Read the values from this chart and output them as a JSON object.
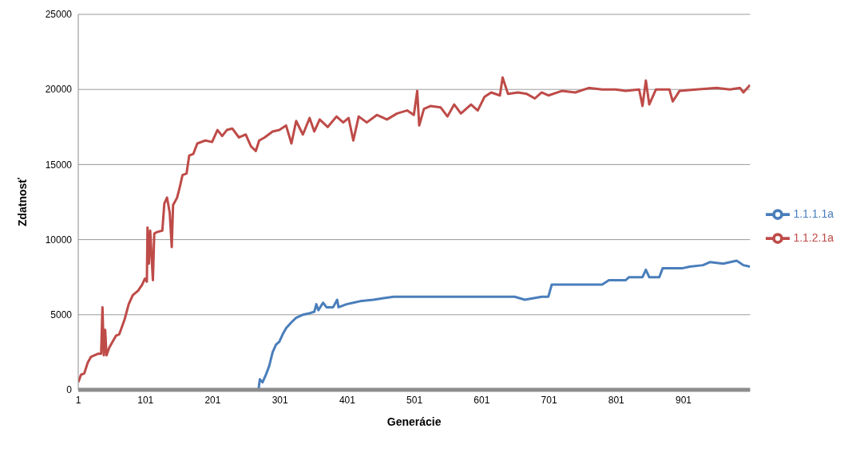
{
  "chart_data": {
    "type": "line",
    "xlabel": "Generácie",
    "ylabel": "Zdatnosť",
    "xlim": [
      1,
      1000
    ],
    "xticks": [
      1,
      101,
      201,
      301,
      401,
      501,
      601,
      701,
      801,
      901
    ],
    "ylim": [
      0,
      25000
    ],
    "yticks": [
      0,
      5000,
      10000,
      15000,
      20000,
      25000
    ],
    "grid": "y",
    "legend": "right",
    "marker": "none",
    "line_style": "solid",
    "series": [
      {
        "name": "1.1.1.1a",
        "color": "#4a7ebb",
        "x": [
          1,
          269,
          271,
          275,
          280,
          285,
          290,
          295,
          300,
          305,
          310,
          318,
          325,
          335,
          345,
          352,
          355,
          358,
          365,
          370,
          380,
          386,
          388,
          400,
          410,
          420,
          440,
          455,
          470,
          500,
          600,
          650,
          665,
          690,
          700,
          705,
          780,
          790,
          815,
          820,
          840,
          845,
          850,
          865,
          870,
          900,
          910,
          930,
          940,
          960,
          980,
          990,
          1000
        ],
        "values": [
          0,
          0,
          700,
          500,
          1000,
          1600,
          2500,
          3000,
          3200,
          3700,
          4100,
          4500,
          4800,
          5000,
          5100,
          5200,
          5700,
          5300,
          5800,
          5500,
          5500,
          6000,
          5500,
          5700,
          5800,
          5900,
          6000,
          6100,
          6200,
          6200,
          6200,
          6200,
          6000,
          6200,
          6200,
          7000,
          7000,
          7300,
          7300,
          7500,
          7500,
          8000,
          7500,
          7500,
          8100,
          8100,
          8200,
          8300,
          8500,
          8400,
          8600,
          8300,
          8200
        ]
      },
      {
        "name": "1.1.2.1a",
        "color": "#be4b48",
        "x": [
          1,
          5,
          10,
          15,
          20,
          30,
          35,
          37,
          39,
          41,
          43,
          47,
          52,
          57,
          62,
          70,
          76,
          82,
          90,
          96,
          100,
          103,
          104,
          106,
          108,
          112,
          114,
          118,
          126,
          129,
          133,
          137,
          140,
          142,
          148,
          152,
          156,
          162,
          166,
          172,
          178,
          190,
          200,
          208,
          215,
          222,
          230,
          240,
          250,
          258,
          265,
          270,
          278,
          290,
          300,
          310,
          318,
          325,
          335,
          345,
          352,
          360,
          372,
          385,
          395,
          403,
          410,
          418,
          430,
          445,
          460,
          475,
          490,
          500,
          505,
          508,
          515,
          525,
          540,
          550,
          560,
          570,
          585,
          595,
          605,
          615,
          628,
          632,
          640,
          655,
          668,
          680,
          690,
          700,
          720,
          740,
          760,
          780,
          800,
          815,
          835,
          840,
          845,
          850,
          860,
          880,
          885,
          895,
          920,
          950,
          970,
          985,
          990,
          1000
        ],
        "values": [
          500,
          1000,
          1100,
          1800,
          2200,
          2400,
          2400,
          5500,
          2300,
          4000,
          2300,
          2800,
          3200,
          3600,
          3700,
          4700,
          5700,
          6300,
          6600,
          7000,
          7400,
          7200,
          10800,
          8400,
          10600,
          7300,
          10400,
          10500,
          10600,
          12400,
          12800,
          11800,
          9500,
          12300,
          12800,
          13500,
          14300,
          14400,
          15600,
          15700,
          16400,
          16600,
          16500,
          17300,
          16900,
          17300,
          17400,
          16800,
          17000,
          16200,
          15900,
          16600,
          16800,
          17200,
          17300,
          17600,
          16400,
          17900,
          17000,
          18100,
          17200,
          18000,
          17500,
          18200,
          17800,
          18100,
          16600,
          18200,
          17800,
          18300,
          18000,
          18400,
          18600,
          18300,
          19900,
          17600,
          18700,
          18900,
          18800,
          18200,
          19000,
          18400,
          19000,
          18600,
          19500,
          19800,
          19600,
          20800,
          19700,
          19800,
          19700,
          19400,
          19800,
          19600,
          19900,
          19800,
          20100,
          20000,
          20000,
          19900,
          20000,
          18900,
          20600,
          19000,
          20000,
          20000,
          19200,
          19900,
          20000,
          20100,
          20000,
          20100,
          19800,
          20300
        ]
      }
    ]
  }
}
